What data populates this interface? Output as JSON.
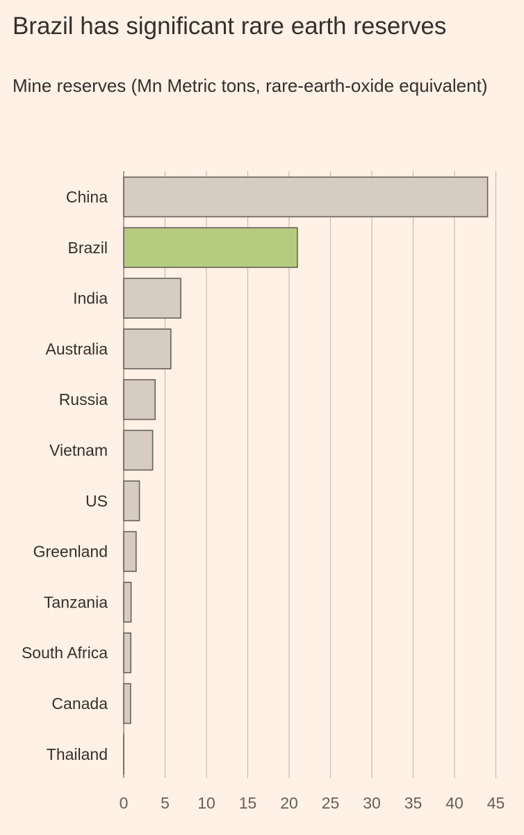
{
  "chart_data": {
    "type": "bar",
    "orientation": "horizontal",
    "title": "Brazil has significant rare earth reserves",
    "subtitle": "Mine reserves (Mn Metric tons, rare-earth-oxide equivalent)",
    "categories": [
      "China",
      "Brazil",
      "India",
      "Australia",
      "Russia",
      "Vietnam",
      "US",
      "Greenland",
      "Tanzania",
      "South Africa",
      "Canada",
      "Thailand"
    ],
    "values": [
      44,
      21,
      6.9,
      5.7,
      3.8,
      3.5,
      1.9,
      1.5,
      0.89,
      0.86,
      0.83,
      0.0045
    ],
    "highlight": "Brazil",
    "colors": {
      "bar": "#d6ccc2",
      "highlight": "#b5cc7f",
      "stroke": "#66605c",
      "grid": "#c4bcb4"
    },
    "xlim": [
      0,
      45
    ],
    "xticks": [
      0,
      5,
      10,
      15,
      20,
      25,
      30,
      35,
      40,
      45
    ],
    "xlabel": "",
    "ylabel": "",
    "grid": true
  }
}
